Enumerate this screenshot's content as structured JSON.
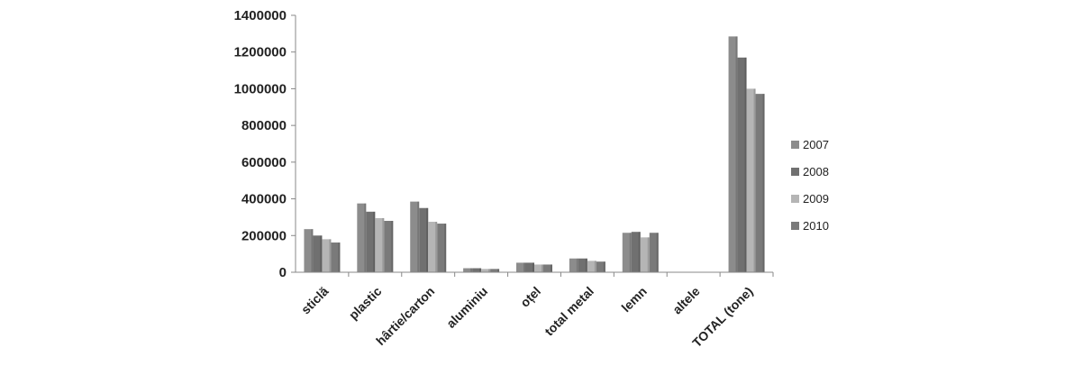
{
  "chart_data": {
    "type": "bar",
    "categories": [
      "sticlă",
      "plastic",
      "hârtie/carton",
      "aluminiu",
      "oțel",
      "total metal",
      "lemn",
      "altele",
      "TOTAL (tone)"
    ],
    "series": [
      {
        "name": "2007",
        "color": "#8c8c8c",
        "values": [
          235000,
          375000,
          385000,
          22000,
          52000,
          75000,
          215000,
          0,
          1285000
        ]
      },
      {
        "name": "2008",
        "color": "#707070",
        "values": [
          200000,
          330000,
          350000,
          22000,
          52000,
          75000,
          220000,
          0,
          1170000
        ]
      },
      {
        "name": "2009",
        "color": "#b5b5b5",
        "values": [
          180000,
          295000,
          275000,
          18000,
          42000,
          62000,
          190000,
          0,
          1000000
        ]
      },
      {
        "name": "2010",
        "color": "#7a7a7a",
        "values": [
          162000,
          280000,
          265000,
          18000,
          42000,
          58000,
          215000,
          0,
          972000
        ]
      }
    ],
    "yticks": [
      "0",
      "200000",
      "400000",
      "600000",
      "800000",
      "1000000",
      "1200000",
      "1400000"
    ],
    "ylim": [
      0,
      1400000
    ],
    "grid": false,
    "legend_position": "right"
  }
}
